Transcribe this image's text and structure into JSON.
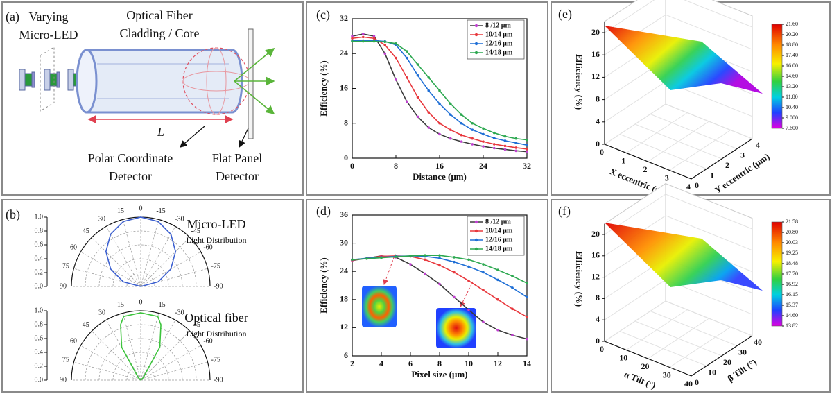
{
  "diagram_a": {
    "label": "(a)",
    "varying": "Varying",
    "micro_led": "Micro-LED",
    "fiber": "Optical Fiber",
    "cladding": "Cladding / Core",
    "length": "L",
    "polar1": "Polar Coordinate",
    "polar2": "Detector",
    "flat1": "Flat Panel",
    "flat2": "Detector"
  },
  "panel_b": {
    "label": "(b)"
  },
  "chart_data": [
    {
      "type": "line",
      "label": "(c)",
      "x_label": "Distance (μm)",
      "y_label": "Efficiency (%)",
      "x": [
        0,
        2,
        4,
        6,
        8,
        10,
        12,
        14,
        16,
        18,
        20,
        22,
        24,
        26,
        28,
        30,
        32
      ],
      "xlim": [
        0,
        32
      ],
      "xticks": [
        0,
        8,
        16,
        24,
        32
      ],
      "ylim": [
        0,
        32
      ],
      "yticks": [
        0,
        8,
        16,
        24,
        32
      ],
      "series": [
        {
          "name": "8 /12 μm",
          "color": "#3a3a3a",
          "marker_color": "#c040d0",
          "values": [
            28,
            28.5,
            28,
            24,
            18,
            13,
            9.5,
            7,
            5.5,
            4.5,
            3.8,
            3.2,
            2.7,
            2.3,
            2,
            1.7,
            1.5
          ]
        },
        {
          "name": "10/14 μm",
          "color": "#e8383d",
          "marker_color": "#e8383d",
          "values": [
            27.5,
            27.8,
            27.5,
            26,
            23,
            18.5,
            14,
            10.5,
            8,
            6.5,
            5.3,
            4.5,
            3.8,
            3.2,
            2.8,
            2.4,
            2.1
          ]
        },
        {
          "name": "12/16 μm",
          "color": "#1f6fd6",
          "marker_color": "#1f6fd6",
          "values": [
            27,
            27,
            27,
            26.8,
            26,
            23,
            19,
            15.5,
            12.5,
            10,
            8,
            6.5,
            5.5,
            4.6,
            4,
            3.5,
            3
          ]
        },
        {
          "name": "14/18 μm",
          "color": "#2ca850",
          "marker_color": "#2ca850",
          "values": [
            26.8,
            26.8,
            26.8,
            26.7,
            26.3,
            24.5,
            21.5,
            18.5,
            15.5,
            12.5,
            10,
            8,
            6.8,
            5.8,
            5,
            4.5,
            4.2
          ]
        }
      ]
    },
    {
      "type": "line",
      "label": "(d)",
      "x_label": "Pixel size (μm)",
      "y_label": "Efficiency (%)",
      "x": [
        2,
        3,
        4,
        5,
        6,
        7,
        8,
        9,
        10,
        11,
        12,
        13,
        14
      ],
      "xlim": [
        2,
        14
      ],
      "xticks": [
        2,
        4,
        6,
        8,
        10,
        12,
        14
      ],
      "ylim": [
        6,
        36
      ],
      "yticks": [
        6,
        12,
        18,
        24,
        30,
        36
      ],
      "series": [
        {
          "name": "8 /12 μm",
          "color": "#3a3a3a",
          "marker_color": "#c040d0",
          "values": [
            26.3,
            26.8,
            27.3,
            27,
            25.5,
            23.5,
            21.3,
            18.5,
            15.8,
            13.2,
            11.5,
            10.4,
            9.6
          ]
        },
        {
          "name": "10/14 μm",
          "color": "#e8383d",
          "marker_color": "#e8383d",
          "values": [
            26.4,
            26.8,
            27.2,
            27.3,
            27.2,
            26.5,
            25.3,
            23.8,
            22,
            20,
            18,
            16,
            14.3
          ]
        },
        {
          "name": "12/16 μm",
          "color": "#1f6fd6",
          "marker_color": "#1f6fd6",
          "values": [
            26.5,
            26.8,
            27,
            27.2,
            27.3,
            27.2,
            26.8,
            26,
            25,
            23.8,
            22.2,
            20.5,
            18.5
          ]
        },
        {
          "name": "14/18 μm",
          "color": "#2ca850",
          "marker_color": "#2ca850",
          "values": [
            26.5,
            26.7,
            26.9,
            27.1,
            27.3,
            27.4,
            27.4,
            27,
            26.5,
            25.5,
            24.3,
            23,
            21.5
          ]
        }
      ]
    },
    {
      "type": "polar",
      "title": "Micro-LED",
      "subtitle": "Light Distribution",
      "rlim": [
        0,
        1
      ],
      "rticks": [
        {
          "value": 0,
          "label": "0.0"
        },
        {
          "value": 0.2,
          "label": "0.2"
        },
        {
          "value": 0.4,
          "label": "0.4"
        },
        {
          "value": 0.6,
          "label": "0.6"
        },
        {
          "value": 0.8,
          "label": "0.8"
        },
        {
          "value": 1,
          "label": "1.0"
        }
      ],
      "angle_ticks": [
        90,
        75,
        60,
        45,
        30,
        15,
        0,
        -15,
        -30,
        -45,
        -60,
        -75,
        -90
      ],
      "series": [
        {
          "color": "#3b5fd0",
          "angles": [
            -90,
            -75,
            -60,
            -45,
            -30,
            -15,
            0,
            15,
            30,
            45,
            60,
            75,
            90
          ],
          "values": [
            0,
            0.26,
            0.5,
            0.71,
            0.87,
            0.97,
            1,
            0.97,
            0.87,
            0.71,
            0.5,
            0.26,
            0
          ]
        }
      ]
    },
    {
      "type": "polar",
      "title": "Optical fiber",
      "subtitle": "Light Distribution",
      "rlim": [
        0,
        1
      ],
      "rticks": [
        {
          "value": 0,
          "label": "0.0"
        },
        {
          "value": 0.2,
          "label": "0.2"
        },
        {
          "value": 0.4,
          "label": "0.4"
        },
        {
          "value": 0.6,
          "label": "0.6"
        },
        {
          "value": 0.8,
          "label": "0.8"
        },
        {
          "value": 1,
          "label": "1.0"
        }
      ],
      "angle_ticks": [
        90,
        75,
        60,
        45,
        30,
        15,
        0,
        -15,
        -30,
        -45,
        -60,
        -75,
        -90
      ],
      "series": [
        {
          "color": "#3cc43c",
          "angles": [
            -90,
            -75,
            -60,
            -45,
            -30,
            -20,
            -15,
            0,
            15,
            20,
            30,
            45,
            60,
            75,
            90
          ],
          "values": [
            0,
            0,
            0,
            0.05,
            0.55,
            0.85,
            0.95,
            0.97,
            0.95,
            0.85,
            0.55,
            0.05,
            0,
            0,
            0
          ]
        }
      ]
    },
    {
      "type": "surface3d",
      "label": "(e)",
      "x_label": "X eccentric (μm)",
      "y_label": "Y eccentric (μm)",
      "z_label": "Efficiency (%)",
      "xlim": [
        0,
        4
      ],
      "xticks": [
        0,
        1,
        2,
        3,
        4
      ],
      "ylim": [
        0,
        4
      ],
      "yticks": [
        0,
        1,
        2,
        3,
        4
      ],
      "zlim": [
        0,
        22
      ],
      "zticks": [
        0,
        4,
        8,
        12,
        16,
        20
      ],
      "clim": [
        7.6,
        21.6
      ],
      "cticks": [
        {
          "value": 21.6,
          "label": "21.60"
        },
        {
          "value": 20.2,
          "label": "20.20"
        },
        {
          "value": 18.8,
          "label": "18.80"
        },
        {
          "value": 17.4,
          "label": "17.40"
        },
        {
          "value": 16,
          "label": "16.00"
        },
        {
          "value": 14.6,
          "label": "14.60"
        },
        {
          "value": 13.2,
          "label": "13.20"
        },
        {
          "value": 11.8,
          "label": "11.80"
        },
        {
          "value": 10.4,
          "label": "10.40"
        },
        {
          "value": 9,
          "label": "9.000"
        },
        {
          "value": 7.6,
          "label": "7.600"
        }
      ]
    },
    {
      "type": "surface3d",
      "label": "(f)",
      "x_label": "α Tilt (°)",
      "y_label": "β Tilt (°)",
      "z_label": "Efficiency (%)",
      "xlim": [
        0,
        40
      ],
      "xticks": [
        0,
        10,
        20,
        30,
        40
      ],
      "ylim": [
        0,
        40
      ],
      "yticks": [
        0,
        10,
        20,
        30,
        40
      ],
      "zlim": [
        0,
        22
      ],
      "zticks": [
        0,
        4,
        8,
        12,
        16,
        20
      ],
      "clim": [
        13.82,
        21.58
      ],
      "cticks": [
        {
          "value": 21.58,
          "label": "21.58"
        },
        {
          "value": 20.8,
          "label": "20.80"
        },
        {
          "value": 20.03,
          "label": "20.03"
        },
        {
          "value": 19.25,
          "label": "19.25"
        },
        {
          "value": 18.48,
          "label": "18.48"
        },
        {
          "value": 17.7,
          "label": "17.70"
        },
        {
          "value": 16.92,
          "label": "16.92"
        },
        {
          "value": 16.15,
          "label": "16.15"
        },
        {
          "value": 15.37,
          "label": "15.37"
        },
        {
          "value": 14.6,
          "label": "14.60"
        },
        {
          "value": 13.82,
          "label": "13.82"
        }
      ]
    }
  ]
}
